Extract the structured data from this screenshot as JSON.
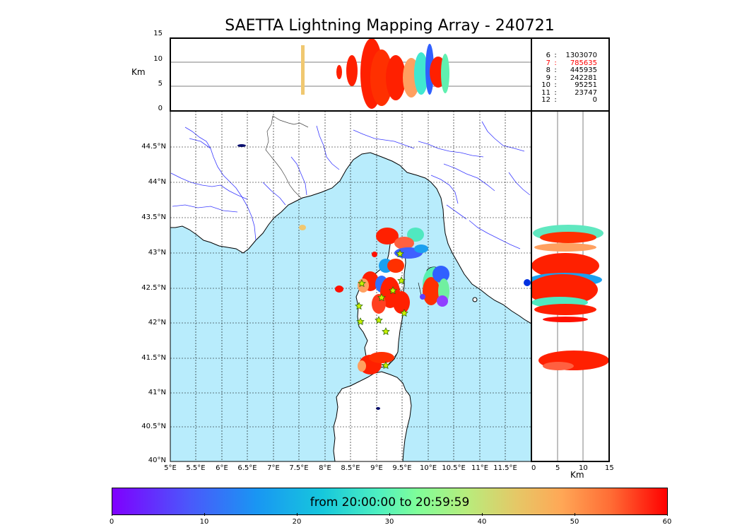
{
  "title": "SAETTA Lightning Mapping Array - 240721",
  "altitude_panel": {
    "ylabel": "Km",
    "ticks": [
      "15",
      "10",
      "5",
      "0"
    ]
  },
  "side_panel": {
    "xlabel": "Km",
    "ticks": [
      "0",
      "5",
      "10",
      "15"
    ]
  },
  "station_counts": [
    {
      "stations": "6",
      "count": "1303070",
      "color": "#000000"
    },
    {
      "stations": "7",
      "count": "785635",
      "color": "#ff0000"
    },
    {
      "stations": "8",
      "count": "445935",
      "color": "#000000"
    },
    {
      "stations": "9",
      "count": "242281",
      "color": "#000000"
    },
    {
      "stations": "10",
      "count": "95251",
      "color": "#000000"
    },
    {
      "stations": "11",
      "count": "23747",
      "color": "#000000"
    },
    {
      "stations": "12",
      "count": "0",
      "color": "#000000"
    }
  ],
  "map": {
    "lat_ticks": [
      "44.5°N",
      "44°N",
      "43.5°N",
      "43°N",
      "42.5°N",
      "42°N",
      "41.5°N",
      "41°N",
      "40.5°N",
      "40°N"
    ],
    "lon_ticks": [
      "5°E",
      "5.5°E",
      "6°E",
      "6.5°E",
      "7°E",
      "7.5°E",
      "8°E",
      "8.5°E",
      "9°E",
      "9.5°E",
      "10°E",
      "10.5°E",
      "11°E",
      "11.5°E"
    ],
    "sea_color": "#b8ecfc",
    "land_color": "#ffffff",
    "river_color": "#3a3aff"
  },
  "colorbar": {
    "label": "from 20:00:00 to 20:59:59",
    "ticks": [
      "0",
      "10",
      "20",
      "30",
      "40",
      "50",
      "60"
    ],
    "colors": [
      "#7f00ff",
      "#1996f3",
      "#4ef0c0",
      "#b8ec7c",
      "#ffa756",
      "#ff0000"
    ]
  }
}
